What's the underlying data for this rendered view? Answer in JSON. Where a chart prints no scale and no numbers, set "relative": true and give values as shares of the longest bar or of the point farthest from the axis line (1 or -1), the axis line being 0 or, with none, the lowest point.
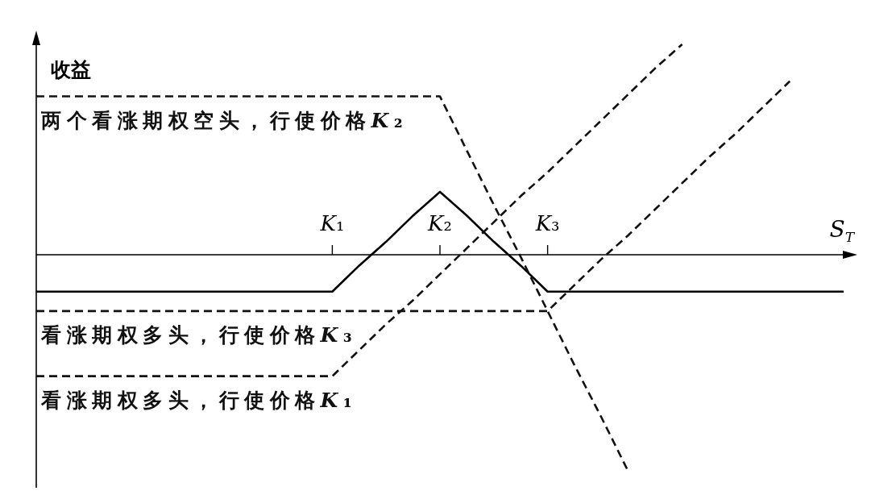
{
  "chart_data": {
    "type": "line",
    "relative": true,
    "ylabel": "收益",
    "xlabel": "S$_{T}$",
    "categories": [
      null,
      null,
      null,
      null,
      null,
      null,
      null,
      null,
      null,
      null,
      null,
      "K₁",
      null,
      null,
      null,
      "K₂",
      null,
      null,
      null,
      "K₃",
      null,
      null,
      null,
      null,
      null,
      null,
      null,
      null,
      null,
      null,
      null
    ],
    "series": [
      {
        "color": "#000000",
        "line_style": "solid",
        "values": [
          -0.17,
          -0.17,
          -0.17,
          -0.17,
          -0.17,
          -0.17,
          -0.17,
          -0.17,
          -0.17,
          -0.17,
          -0.17,
          -0.17,
          -0.05,
          0.06,
          0.18,
          0.29,
          0.18,
          0.06,
          -0.05,
          -0.17,
          -0.17,
          -0.17,
          -0.17,
          -0.17,
          -0.17,
          -0.17,
          -0.17,
          -0.17,
          -0.17,
          -0.17,
          -0.17
        ]
      },
      {
        "name": "两个看涨期权空头，行使价格K₂",
        "color": "#111111",
        "line_style": "dashed",
        "values": [
          0.73,
          0.73,
          0.73,
          0.73,
          0.73,
          0.73,
          0.73,
          0.73,
          0.73,
          0.73,
          0.73,
          0.73,
          0.73,
          0.73,
          0.73,
          0.73,
          0.48,
          0.23,
          -0.01,
          -0.26,
          -0.51,
          -0.75,
          -1,
          null,
          null,
          null,
          null,
          null,
          null,
          null,
          null
        ]
      },
      {
        "name": "看涨期权多头，行使价格K₃",
        "color": "#111111",
        "line_style": "dashed",
        "values": [
          -0.26,
          -0.26,
          -0.26,
          -0.26,
          -0.26,
          -0.26,
          -0.26,
          -0.26,
          -0.26,
          -0.26,
          -0.26,
          -0.26,
          -0.26,
          -0.26,
          -0.26,
          -0.26,
          -0.26,
          -0.26,
          -0.26,
          -0.26,
          -0.14,
          -0.02,
          0.09,
          0.21,
          0.33,
          0.45,
          0.56,
          0.68,
          0.8,
          null,
          null
        ]
      },
      {
        "name": "看涨期权多头，行使价格K₁",
        "color": "#111111",
        "line_style": "dashed",
        "values": [
          -0.56,
          -0.56,
          -0.56,
          -0.56,
          -0.56,
          -0.56,
          -0.56,
          -0.56,
          -0.56,
          -0.56,
          -0.56,
          -0.56,
          -0.44,
          -0.32,
          -0.21,
          -0.09,
          0.03,
          0.15,
          0.27,
          0.38,
          0.5,
          0.62,
          0.74,
          0.86,
          0.97,
          null,
          null,
          null,
          null,
          null,
          null
        ]
      }
    ]
  }
}
